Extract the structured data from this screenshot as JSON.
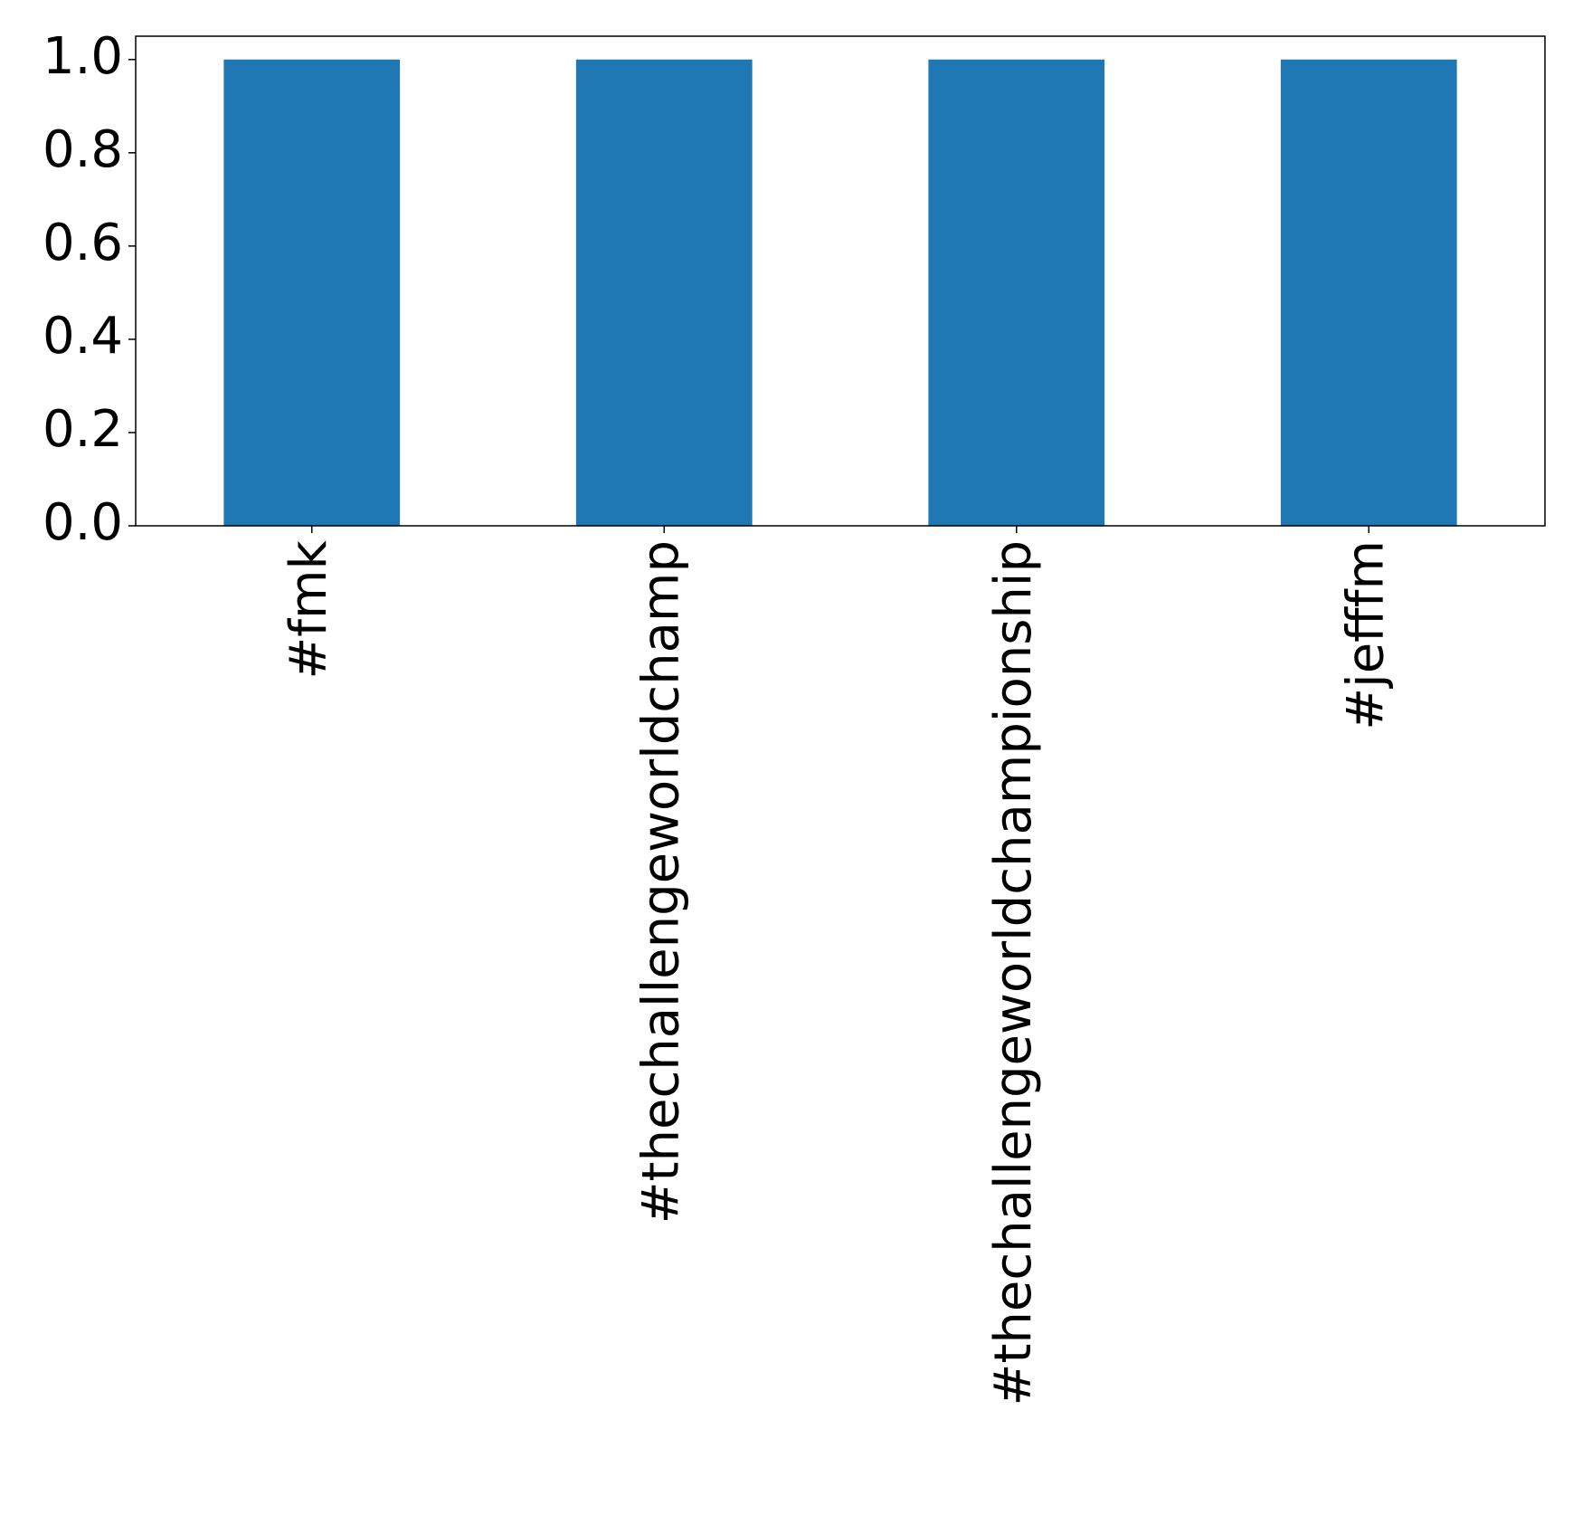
{
  "chart_data": {
    "type": "bar",
    "categories": [
      "#fmk",
      "#thechallengeworldchamp",
      "#thechallengeworldchampionship",
      "#jefffm"
    ],
    "values": [
      1,
      1,
      1,
      1
    ],
    "color": "#1f77b4",
    "ylim": [
      0,
      1.05
    ],
    "yticks": [
      {
        "value": 0,
        "label": "0.0"
      },
      {
        "value": 0.2,
        "label": "0.2"
      },
      {
        "value": 0.4,
        "label": "0.4"
      },
      {
        "value": 0.6,
        "label": "0.6"
      },
      {
        "value": 0.8,
        "label": "0.8"
      },
      {
        "value": 1,
        "label": "1.0"
      }
    ],
    "grid": false
  }
}
